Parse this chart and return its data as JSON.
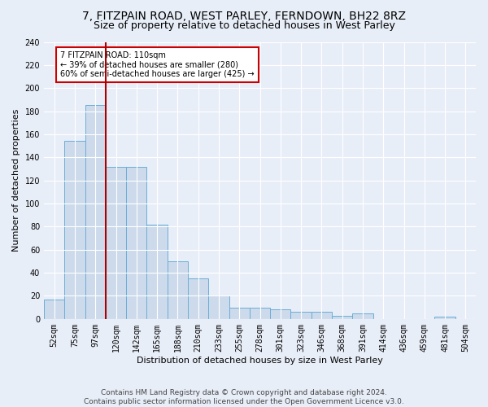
{
  "title1": "7, FITZPAIN ROAD, WEST PARLEY, FERNDOWN, BH22 8RZ",
  "title2": "Size of property relative to detached houses in West Parley",
  "xlabel": "Distribution of detached houses by size in West Parley",
  "ylabel": "Number of detached properties",
  "categories": [
    "52sqm",
    "75sqm",
    "97sqm",
    "120sqm",
    "142sqm",
    "165sqm",
    "188sqm",
    "210sqm",
    "233sqm",
    "255sqm",
    "278sqm",
    "301sqm",
    "323sqm",
    "346sqm",
    "368sqm",
    "391sqm",
    "414sqm",
    "436sqm",
    "459sqm",
    "481sqm",
    "504sqm"
  ],
  "values": [
    17,
    154,
    185,
    132,
    132,
    82,
    50,
    35,
    20,
    10,
    10,
    8,
    6,
    6,
    3,
    5,
    0,
    0,
    0,
    2,
    0
  ],
  "bar_color": "#ccdaeb",
  "bar_edge_color": "#6aaed6",
  "vline_x": 2.5,
  "vline_color": "#aa0000",
  "annotation_text": "7 FITZPAIN ROAD: 110sqm\n← 39% of detached houses are smaller (280)\n60% of semi-detached houses are larger (425) →",
  "annotation_box_color": "white",
  "annotation_box_edge": "#cc0000",
  "ylim": [
    0,
    240
  ],
  "yticks": [
    0,
    20,
    40,
    60,
    80,
    100,
    120,
    140,
    160,
    180,
    200,
    220,
    240
  ],
  "footer": "Contains HM Land Registry data © Crown copyright and database right 2024.\nContains public sector information licensed under the Open Government Licence v3.0.",
  "bg_color": "#e8eef8",
  "plot_bg_color": "#e8eef8",
  "grid_color": "white",
  "title_fontsize": 10,
  "subtitle_fontsize": 9,
  "axis_label_fontsize": 8,
  "tick_fontsize": 7,
  "footer_fontsize": 6.5
}
